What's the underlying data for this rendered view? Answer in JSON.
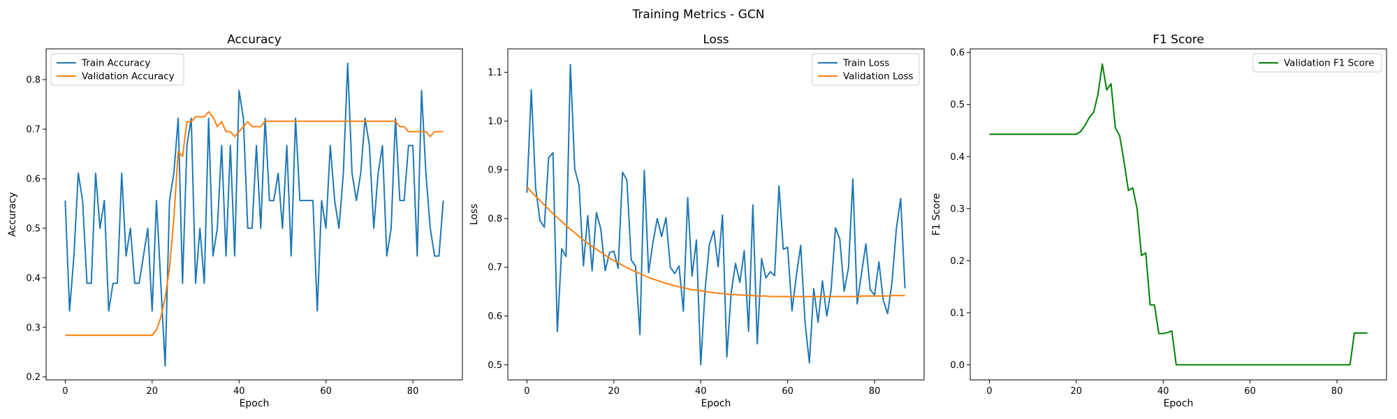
{
  "figure": {
    "suptitle": "Training Metrics - GCN"
  },
  "colors": {
    "train": "#1f77b4",
    "validation": "#ff7f0e",
    "f1": "#008000",
    "axes": "#000000"
  },
  "chart_data": [
    {
      "type": "line",
      "title": "Accuracy",
      "xlabel": "Epoch",
      "ylabel": "Accuracy",
      "xlim": [
        -4.4,
        91.4
      ],
      "ylim": [
        0.194,
        0.862
      ],
      "xticks": [
        0,
        20,
        40,
        60,
        80
      ],
      "yticks": [
        0.2,
        0.3,
        0.4,
        0.5,
        0.6,
        0.7,
        0.8
      ],
      "legend_position": "upper left",
      "x": [
        0,
        1,
        2,
        3,
        4,
        5,
        6,
        7,
        8,
        9,
        10,
        11,
        12,
        13,
        14,
        15,
        16,
        17,
        18,
        19,
        20,
        21,
        22,
        23,
        24,
        25,
        26,
        27,
        28,
        29,
        30,
        31,
        32,
        33,
        34,
        35,
        36,
        37,
        38,
        39,
        40,
        41,
        42,
        43,
        44,
        45,
        46,
        47,
        48,
        49,
        50,
        51,
        52,
        53,
        54,
        55,
        56,
        57,
        58,
        59,
        60,
        61,
        62,
        63,
        64,
        65,
        66,
        67,
        68,
        69,
        70,
        71,
        72,
        73,
        74,
        75,
        76,
        77,
        78,
        79,
        80,
        81,
        82,
        83,
        84,
        85,
        86,
        87
      ],
      "series": [
        {
          "name": "Train Accuracy",
          "color": "#1f77b4",
          "values": [
            0.556,
            0.333,
            0.444,
            0.611,
            0.556,
            0.389,
            0.389,
            0.611,
            0.5,
            0.556,
            0.333,
            0.389,
            0.389,
            0.611,
            0.444,
            0.5,
            0.389,
            0.389,
            0.444,
            0.5,
            0.333,
            0.556,
            0.389,
            0.222,
            0.556,
            0.611,
            0.722,
            0.389,
            0.667,
            0.722,
            0.389,
            0.5,
            0.389,
            0.722,
            0.444,
            0.5,
            0.667,
            0.444,
            0.667,
            0.444,
            0.778,
            0.722,
            0.5,
            0.5,
            0.667,
            0.5,
            0.722,
            0.556,
            0.556,
            0.611,
            0.5,
            0.667,
            0.444,
            0.722,
            0.556,
            0.556,
            0.556,
            0.556,
            0.333,
            0.556,
            0.5,
            0.667,
            0.556,
            0.5,
            0.611,
            0.833,
            0.611,
            0.556,
            0.611,
            0.722,
            0.667,
            0.5,
            0.611,
            0.667,
            0.444,
            0.5,
            0.722,
            0.556,
            0.556,
            0.667,
            0.667,
            0.444,
            0.778,
            0.611,
            0.5,
            0.444,
            0.444,
            0.556
          ]
        },
        {
          "name": "Validation Accuracy",
          "color": "#ff7f0e",
          "values": [
            0.284,
            0.284,
            0.284,
            0.284,
            0.284,
            0.284,
            0.284,
            0.284,
            0.284,
            0.284,
            0.284,
            0.284,
            0.284,
            0.284,
            0.284,
            0.284,
            0.284,
            0.284,
            0.284,
            0.284,
            0.284,
            0.295,
            0.32,
            0.36,
            0.42,
            0.52,
            0.655,
            0.645,
            0.715,
            0.715,
            0.725,
            0.725,
            0.725,
            0.735,
            0.725,
            0.705,
            0.715,
            0.695,
            0.695,
            0.685,
            0.695,
            0.705,
            0.715,
            0.705,
            0.705,
            0.705,
            0.716,
            0.716,
            0.716,
            0.716,
            0.716,
            0.716,
            0.716,
            0.716,
            0.716,
            0.716,
            0.716,
            0.716,
            0.716,
            0.716,
            0.716,
            0.716,
            0.716,
            0.716,
            0.716,
            0.716,
            0.716,
            0.716,
            0.716,
            0.716,
            0.716,
            0.716,
            0.716,
            0.716,
            0.716,
            0.716,
            0.716,
            0.705,
            0.705,
            0.695,
            0.695,
            0.695,
            0.695,
            0.695,
            0.685,
            0.695,
            0.695,
            0.695
          ]
        }
      ]
    },
    {
      "type": "line",
      "title": "Loss",
      "xlabel": "Epoch",
      "ylabel": "Loss",
      "xlim": [
        -4.4,
        91.4
      ],
      "ylim": [
        0.469,
        1.148
      ],
      "xticks": [
        0,
        20,
        40,
        60,
        80
      ],
      "yticks": [
        0.5,
        0.6,
        0.7,
        0.8,
        0.9,
        1.0,
        1.1
      ],
      "legend_position": "upper right",
      "x": [
        0,
        1,
        2,
        3,
        4,
        5,
        6,
        7,
        8,
        9,
        10,
        11,
        12,
        13,
        14,
        15,
        16,
        17,
        18,
        19,
        20,
        21,
        22,
        23,
        24,
        25,
        26,
        27,
        28,
        29,
        30,
        31,
        32,
        33,
        34,
        35,
        36,
        37,
        38,
        39,
        40,
        41,
        42,
        43,
        44,
        45,
        46,
        47,
        48,
        49,
        50,
        51,
        52,
        53,
        54,
        55,
        56,
        57,
        58,
        59,
        60,
        61,
        62,
        63,
        64,
        65,
        66,
        67,
        68,
        69,
        70,
        71,
        72,
        73,
        74,
        75,
        76,
        77,
        78,
        79,
        80,
        81,
        82,
        83,
        84,
        85,
        86,
        87
      ],
      "series": [
        {
          "name": "Train Loss",
          "color": "#1f77b4",
          "values": [
            0.853,
            1.064,
            0.863,
            0.796,
            0.782,
            0.925,
            0.935,
            0.568,
            0.738,
            0.722,
            1.116,
            0.902,
            0.868,
            0.703,
            0.806,
            0.693,
            0.812,
            0.778,
            0.693,
            0.73,
            0.733,
            0.698,
            0.895,
            0.879,
            0.715,
            0.702,
            0.562,
            0.899,
            0.689,
            0.751,
            0.8,
            0.763,
            0.802,
            0.7,
            0.687,
            0.703,
            0.61,
            0.843,
            0.682,
            0.756,
            0.5,
            0.654,
            0.747,
            0.775,
            0.701,
            0.807,
            0.516,
            0.648,
            0.708,
            0.669,
            0.734,
            0.569,
            0.828,
            0.543,
            0.718,
            0.678,
            0.691,
            0.683,
            0.867,
            0.737,
            0.741,
            0.611,
            0.683,
            0.745,
            0.587,
            0.504,
            0.656,
            0.587,
            0.672,
            0.6,
            0.654,
            0.781,
            0.758,
            0.651,
            0.699,
            0.881,
            0.625,
            0.688,
            0.748,
            0.654,
            0.643,
            0.711,
            0.632,
            0.605,
            0.668,
            0.778,
            0.841,
            0.657
          ]
        },
        {
          "name": "Validation Loss",
          "color": "#ff7f0e",
          "values": [
            0.865,
            0.855,
            0.846,
            0.837,
            0.828,
            0.819,
            0.81,
            0.802,
            0.794,
            0.786,
            0.778,
            0.771,
            0.763,
            0.756,
            0.749,
            0.743,
            0.737,
            0.731,
            0.725,
            0.719,
            0.714,
            0.709,
            0.704,
            0.699,
            0.695,
            0.691,
            0.687,
            0.683,
            0.679,
            0.676,
            0.673,
            0.67,
            0.667,
            0.665,
            0.662,
            0.66,
            0.658,
            0.656,
            0.654,
            0.653,
            0.652,
            0.65,
            0.649,
            0.648,
            0.647,
            0.646,
            0.645,
            0.644,
            0.644,
            0.643,
            0.643,
            0.642,
            0.642,
            0.641,
            0.641,
            0.641,
            0.64,
            0.64,
            0.64,
            0.64,
            0.64,
            0.64,
            0.64,
            0.64,
            0.64,
            0.64,
            0.64,
            0.64,
            0.64,
            0.64,
            0.64,
            0.64,
            0.64,
            0.64,
            0.64,
            0.64,
            0.64,
            0.641,
            0.641,
            0.641,
            0.641,
            0.641,
            0.641,
            0.641,
            0.642,
            0.642,
            0.642,
            0.642
          ]
        }
      ]
    },
    {
      "type": "line",
      "title": "F1 Score",
      "xlabel": "Epoch",
      "ylabel": "F1 Score",
      "xlim": [
        -4.4,
        91.4
      ],
      "ylim": [
        -0.029,
        0.607
      ],
      "xticks": [
        0,
        20,
        40,
        60,
        80
      ],
      "yticks": [
        0.0,
        0.1,
        0.2,
        0.3,
        0.4,
        0.5,
        0.6
      ],
      "legend_position": "upper right",
      "x": [
        0,
        1,
        2,
        3,
        4,
        5,
        6,
        7,
        8,
        9,
        10,
        11,
        12,
        13,
        14,
        15,
        16,
        17,
        18,
        19,
        20,
        21,
        22,
        23,
        24,
        25,
        26,
        27,
        28,
        29,
        30,
        31,
        32,
        33,
        34,
        35,
        36,
        37,
        38,
        39,
        40,
        41,
        42,
        43,
        44,
        45,
        46,
        47,
        48,
        49,
        50,
        51,
        52,
        53,
        54,
        55,
        56,
        57,
        58,
        59,
        60,
        61,
        62,
        63,
        64,
        65,
        66,
        67,
        68,
        69,
        70,
        71,
        72,
        73,
        74,
        75,
        76,
        77,
        78,
        79,
        80,
        81,
        82,
        83,
        84,
        85,
        86,
        87
      ],
      "series": [
        {
          "name": "Validation F1 Score",
          "color": "#008000",
          "values": [
            0.443,
            0.443,
            0.443,
            0.443,
            0.443,
            0.443,
            0.443,
            0.443,
            0.443,
            0.443,
            0.443,
            0.443,
            0.443,
            0.443,
            0.443,
            0.443,
            0.443,
            0.443,
            0.443,
            0.443,
            0.443,
            0.448,
            0.46,
            0.475,
            0.485,
            0.52,
            0.578,
            0.528,
            0.54,
            0.455,
            0.44,
            0.39,
            0.335,
            0.34,
            0.3,
            0.21,
            0.215,
            0.115,
            0.115,
            0.06,
            0.06,
            0.062,
            0.065,
            0.0,
            0.0,
            0.0,
            0.0,
            0.0,
            0.0,
            0.0,
            0.0,
            0.0,
            0.0,
            0.0,
            0.0,
            0.0,
            0.0,
            0.0,
            0.0,
            0.0,
            0.0,
            0.0,
            0.0,
            0.0,
            0.0,
            0.0,
            0.0,
            0.0,
            0.0,
            0.0,
            0.0,
            0.0,
            0.0,
            0.0,
            0.0,
            0.0,
            0.0,
            0.0,
            0.0,
            0.0,
            0.0,
            0.0,
            0.0,
            0.0,
            0.061,
            0.061,
            0.061,
            0.061
          ]
        }
      ]
    }
  ]
}
